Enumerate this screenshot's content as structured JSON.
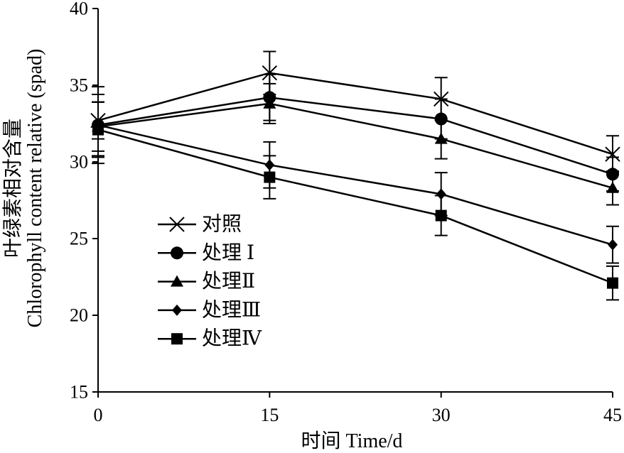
{
  "chart_data": {
    "type": "line",
    "xlabel": "时间 Time/d",
    "ylabel": "叶绿素相对含量",
    "ylabel_en": "Chlorophyll content relative (spad)",
    "x": [
      0,
      15,
      30,
      45
    ],
    "xlim": [
      0,
      45
    ],
    "ylim": [
      15,
      40
    ],
    "xticks": [
      0,
      15,
      30,
      45
    ],
    "yticks": [
      15,
      20,
      25,
      30,
      35,
      40
    ],
    "grid": false,
    "legend": "center-left",
    "error_bars": true,
    "series": [
      {
        "name": "对照",
        "marker": "x-mark",
        "color": "#000000",
        "values": [
          32.7,
          35.8,
          34.1,
          30.5
        ],
        "errors": [
          1.2,
          1.4,
          1.4,
          1.2
        ]
      },
      {
        "name": "处理 Ⅰ",
        "marker": "circle",
        "color": "#000000",
        "values": [
          32.4,
          34.2,
          32.8,
          29.2
        ],
        "errors": [
          2.0,
          1.5,
          1.3,
          1.1
        ]
      },
      {
        "name": "处理Ⅱ",
        "marker": "triangle",
        "color": "#000000",
        "values": [
          32.3,
          33.8,
          31.5,
          28.3
        ],
        "errors": [
          1.6,
          1.3,
          1.3,
          1.1
        ]
      },
      {
        "name": "处理Ⅲ",
        "marker": "diamond",
        "color": "#000000",
        "values": [
          32.4,
          29.8,
          27.9,
          24.6
        ],
        "errors": [
          2.5,
          1.5,
          1.4,
          1.2
        ]
      },
      {
        "name": "处理Ⅳ",
        "marker": "square",
        "color": "#000000",
        "values": [
          32.1,
          29.0,
          26.5,
          22.1
        ],
        "errors": [
          1.8,
          1.4,
          1.3,
          1.1
        ]
      }
    ]
  }
}
